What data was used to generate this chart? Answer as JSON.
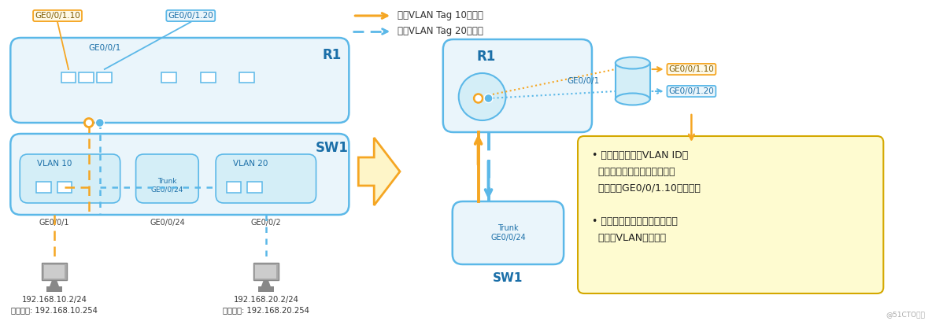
{
  "bg_color": "#ffffff",
  "orange_color": "#F5A623",
  "blue_color": "#5BB8E8",
  "dark_blue": "#2980B9",
  "light_blue_fill": "#EAF5FB",
  "light_blue_fill2": "#D4EEF7",
  "yellow_fill": "#FEFBD0",
  "yellow_border": "#D4A800",
  "text_color": "#333333",
  "blue_text": "#1B6FA8",
  "legend_orange_text": "携带VLAN Tag 10的报文",
  "legend_blue_text": "携带VLAN Tag 20的报文",
  "r1_label": "R1",
  "sw1_label": "SW1",
  "vlan10_label": "VLAN 10",
  "vlan20_label": "VLAN 20",
  "ge001_label": "GE0/0/1",
  "ge0010_label": "GE0/0/1.10",
  "ge0020_label": "GE0/0/1.20",
  "ge001_sw_label": "GE0/0/1",
  "ge002_sw_label": "GE0/0/2",
  "ge0024_sw_label": "GE0/0/24",
  "trunk_label": "Trunk\nGE0/0/24",
  "ip1": "192.168.10.2/24",
  "gw1": "默认网关: 192.168.10.254",
  "ip2": "192.168.20.2/24",
  "gw2": "默认网关: 192.168.20.254",
  "bullet_text": "• 根据报文携带的VLAN ID，\n  设备将报文交由相应的子接口\n  （如图中GE0/0/1.10）处理。\n\n• 通过子接口，设备可以三层转\n  发实现VLAN间通信。",
  "watermark": "@51CTO博客"
}
